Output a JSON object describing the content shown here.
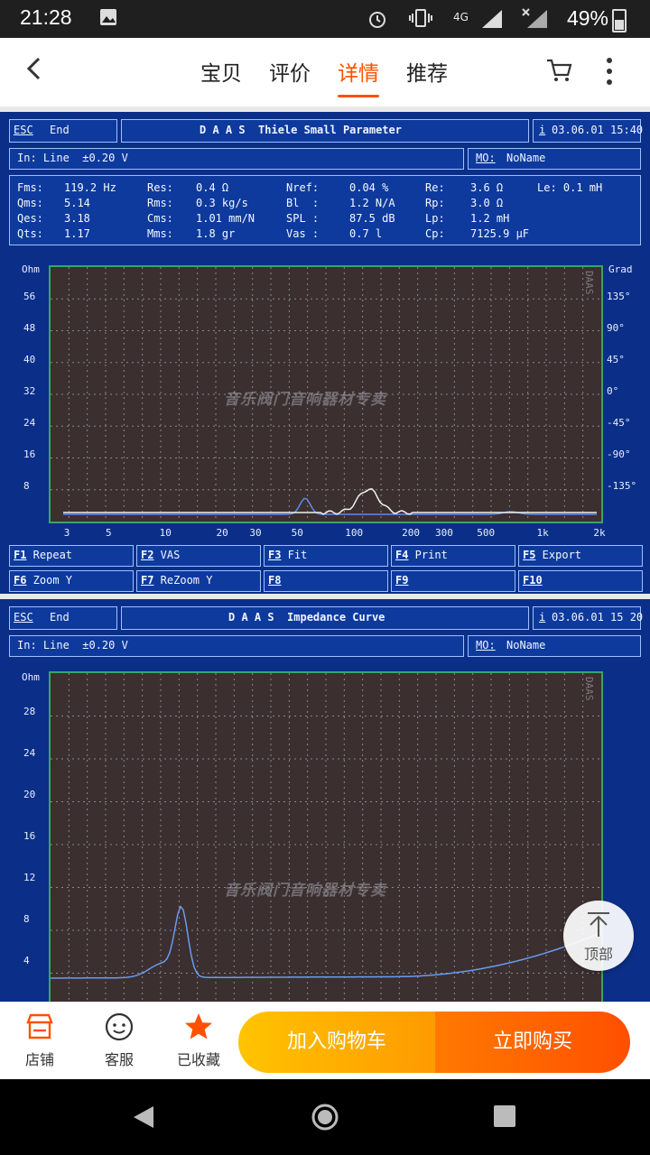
{
  "status_bar": {
    "time": "21:28",
    "network": "4G",
    "battery": "49%"
  },
  "nav": {
    "tabs": [
      "宝贝",
      "评价",
      "详情",
      "推荐"
    ],
    "active_tab": "详情"
  },
  "panel1": {
    "esc": "ESC",
    "end": "End",
    "title": "D A A S  Thiele Small Parameter",
    "info_icon": "i",
    "datetime": "03.06.01 15:40",
    "input": "In: Line  ±0.20 V",
    "mo_label": "MO:",
    "mo_value": "NoName",
    "params": [
      [
        "Fms:",
        "119.2 Hz",
        "Res:",
        "0.4 Ω",
        "Nref:",
        "0.04 %",
        "Re:",
        "3.6 Ω",
        "Le: 0.1 mH"
      ],
      [
        "Qms:",
        "5.14",
        "Rms:",
        "0.3 kg/s",
        "Bl  :",
        "1.2 N/A",
        "Rp:",
        "3.0 Ω",
        ""
      ],
      [
        "Qes:",
        "3.18",
        "Cms:",
        "1.01 mm/N",
        "SPL :",
        "87.5 dB",
        "Lp:",
        "1.2 mH",
        ""
      ],
      [
        "Qts:",
        "1.17",
        "Mms:",
        "1.8 gr",
        "Vas :",
        "0.7 l",
        "Cp:",
        "7125.9 µF",
        ""
      ]
    ],
    "y_unit": "Ohm",
    "y_ticks": [
      "56",
      "48",
      "40",
      "32",
      "24",
      "16",
      "8"
    ],
    "y2_unit": "Grad",
    "y2_ticks": [
      "135°",
      "90°",
      "45°",
      "0°",
      "-45°",
      "-90°",
      "-135°"
    ],
    "x_ticks": [
      "3",
      "5",
      "10",
      "20",
      "30",
      "50",
      "100",
      "200",
      "300",
      "500",
      "1k",
      "2k"
    ],
    "watermark": "音乐阀门音响器材专卖",
    "daas_logo": "DAAS",
    "fkeys": [
      {
        "key": "F1",
        "label": " Repeat"
      },
      {
        "key": "F2",
        "label": " VAS"
      },
      {
        "key": "F3",
        "label": " Fit"
      },
      {
        "key": "F4",
        "label": " Print"
      },
      {
        "key": "F5",
        "label": " Export"
      },
      {
        "key": "F6",
        "label": " Zoom Y"
      },
      {
        "key": "F7",
        "label": " ReZoom Y"
      },
      {
        "key": "F8",
        "label": ""
      },
      {
        "key": "F9",
        "label": ""
      },
      {
        "key": "F10",
        "label": ""
      }
    ]
  },
  "panel2": {
    "esc": "ESC",
    "end": "End",
    "title": "D A A S  Impedance Curve",
    "info_icon": "i",
    "datetime": "03.06.01 15 20",
    "input": "In: Line  ±0.20 V",
    "mo_label": "MO:",
    "mo_value": "NoName",
    "y_unit": "Ohm",
    "y_ticks": [
      "28",
      "24",
      "20",
      "16",
      "12",
      "8",
      "4"
    ],
    "watermark": "音乐阀门音响器材专卖",
    "daas_logo": "DAAS"
  },
  "back_to_top": "顶部",
  "bottom_bar": {
    "shop": "店铺",
    "service": "客服",
    "favorite": "已收藏",
    "add_to_cart": "加入购物车",
    "buy_now": "立即购买"
  },
  "colors": {
    "accent": "#ff5000",
    "daas_blue": "#0b2f88",
    "plot_bg": "#3b2f30",
    "grid": "#8a8a8a"
  }
}
